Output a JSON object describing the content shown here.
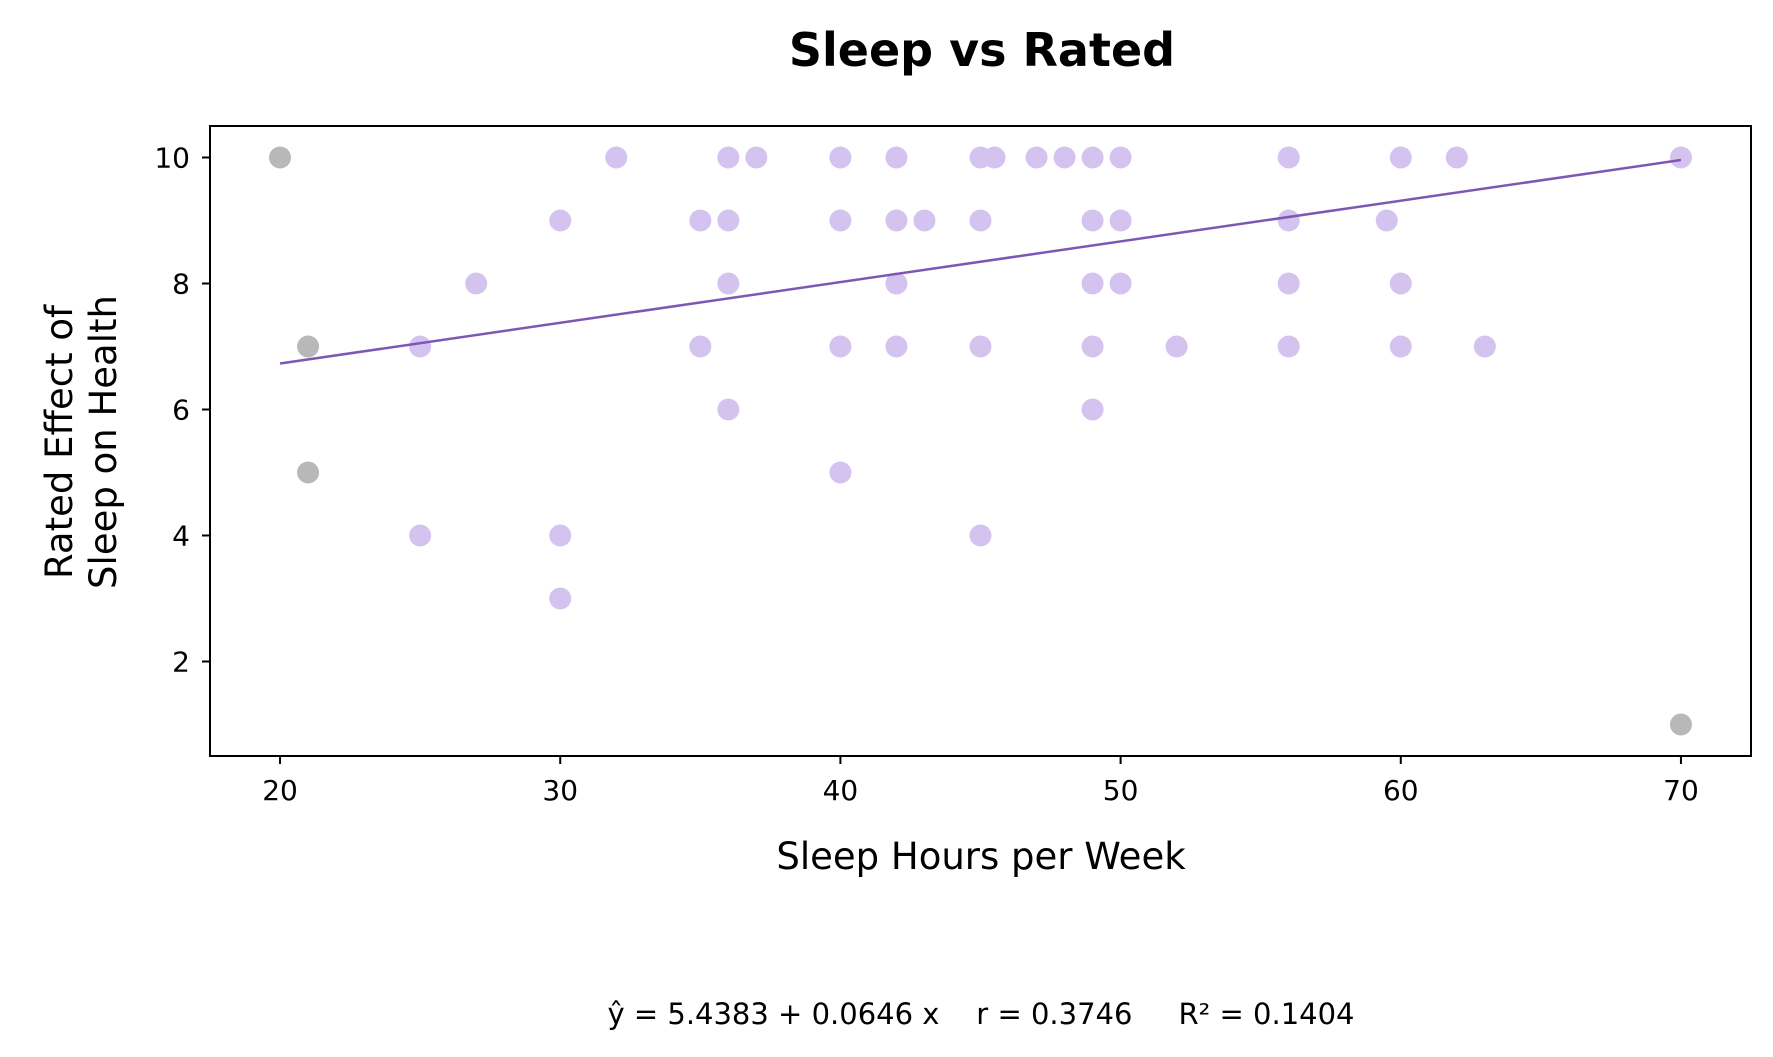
{
  "chart_data": {
    "type": "scatter",
    "title": "Sleep vs Rated",
    "xlabel": "Sleep Hours per Week",
    "ylabel_lines": [
      "Rated Effect of",
      "Sleep on Health"
    ],
    "xlim": [
      17.5,
      72.5
    ],
    "ylim": [
      0.5,
      10.5
    ],
    "xticks": [
      20,
      30,
      40,
      50,
      60,
      70
    ],
    "yticks": [
      2,
      4,
      6,
      8,
      10
    ],
    "grid": false,
    "colors": {
      "points": "#d5c3ef",
      "outliers": "#b8b8b8",
      "fit_line": "#7e57b5",
      "axes": "#000000"
    },
    "regression": {
      "intercept": 5.4383,
      "slope": 0.0646,
      "x_range": [
        20,
        70
      ]
    },
    "stats_text": "ŷ = 5.4383 + 0.0646 x    r = 0.3746     R² = 0.1404",
    "points": [
      {
        "x": 25,
        "y": 7
      },
      {
        "x": 25,
        "y": 4
      },
      {
        "x": 27,
        "y": 8
      },
      {
        "x": 30,
        "y": 9
      },
      {
        "x": 30,
        "y": 4
      },
      {
        "x": 30,
        "y": 3
      },
      {
        "x": 32,
        "y": 10
      },
      {
        "x": 35,
        "y": 9
      },
      {
        "x": 35,
        "y": 7
      },
      {
        "x": 36,
        "y": 10
      },
      {
        "x": 36,
        "y": 9
      },
      {
        "x": 36,
        "y": 8
      },
      {
        "x": 36,
        "y": 6
      },
      {
        "x": 37,
        "y": 10
      },
      {
        "x": 40,
        "y": 10
      },
      {
        "x": 40,
        "y": 9
      },
      {
        "x": 40,
        "y": 7
      },
      {
        "x": 40,
        "y": 5
      },
      {
        "x": 42,
        "y": 10
      },
      {
        "x": 42,
        "y": 9
      },
      {
        "x": 42,
        "y": 8
      },
      {
        "x": 42,
        "y": 7
      },
      {
        "x": 43,
        "y": 9
      },
      {
        "x": 45,
        "y": 10
      },
      {
        "x": 45,
        "y": 9
      },
      {
        "x": 45,
        "y": 7
      },
      {
        "x": 45,
        "y": 4
      },
      {
        "x": 45.5,
        "y": 10
      },
      {
        "x": 47,
        "y": 10
      },
      {
        "x": 48,
        "y": 10
      },
      {
        "x": 49,
        "y": 10
      },
      {
        "x": 49,
        "y": 9
      },
      {
        "x": 49,
        "y": 8
      },
      {
        "x": 49,
        "y": 7
      },
      {
        "x": 49,
        "y": 6
      },
      {
        "x": 50,
        "y": 10
      },
      {
        "x": 50,
        "y": 9
      },
      {
        "x": 50,
        "y": 8
      },
      {
        "x": 52,
        "y": 7
      },
      {
        "x": 56,
        "y": 10
      },
      {
        "x": 56,
        "y": 9
      },
      {
        "x": 56,
        "y": 8
      },
      {
        "x": 56,
        "y": 7
      },
      {
        "x": 59.5,
        "y": 9
      },
      {
        "x": 60,
        "y": 10
      },
      {
        "x": 60,
        "y": 8
      },
      {
        "x": 60,
        "y": 7
      },
      {
        "x": 62,
        "y": 10
      },
      {
        "x": 63,
        "y": 7
      },
      {
        "x": 70,
        "y": 10
      }
    ],
    "outliers": [
      {
        "x": 20,
        "y": 10
      },
      {
        "x": 21,
        "y": 7
      },
      {
        "x": 21,
        "y": 5
      },
      {
        "x": 70,
        "y": 1
      }
    ]
  }
}
